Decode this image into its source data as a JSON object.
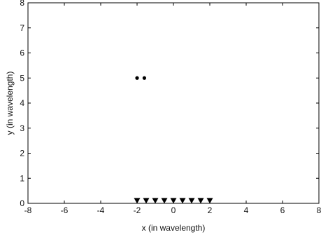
{
  "chart_data": {
    "type": "scatter",
    "xlabel": "x (in wavelength)",
    "ylabel": "y (in wavelength)",
    "xlim": [
      -8,
      8
    ],
    "ylim": [
      0,
      8
    ],
    "xticks": [
      -8,
      -6,
      -4,
      -2,
      0,
      2,
      4,
      6,
      8
    ],
    "yticks": [
      0,
      1,
      2,
      3,
      4,
      5,
      6,
      7,
      8
    ],
    "grid": false,
    "series": [
      {
        "marker": "circle",
        "color": "#000000",
        "points": [
          {
            "x": -2.0,
            "y": 5.0
          },
          {
            "x": -1.6,
            "y": 5.0
          }
        ]
      },
      {
        "marker": "triangle-down",
        "color": "#000000",
        "points": [
          {
            "x": -2.0,
            "y": 0.1
          },
          {
            "x": -1.5,
            "y": 0.1
          },
          {
            "x": -1.0,
            "y": 0.1
          },
          {
            "x": -0.5,
            "y": 0.1
          },
          {
            "x": 0.0,
            "y": 0.1
          },
          {
            "x": 0.5,
            "y": 0.1
          },
          {
            "x": 1.0,
            "y": 0.1
          },
          {
            "x": 1.5,
            "y": 0.1
          },
          {
            "x": 2.0,
            "y": 0.1
          }
        ]
      }
    ]
  }
}
